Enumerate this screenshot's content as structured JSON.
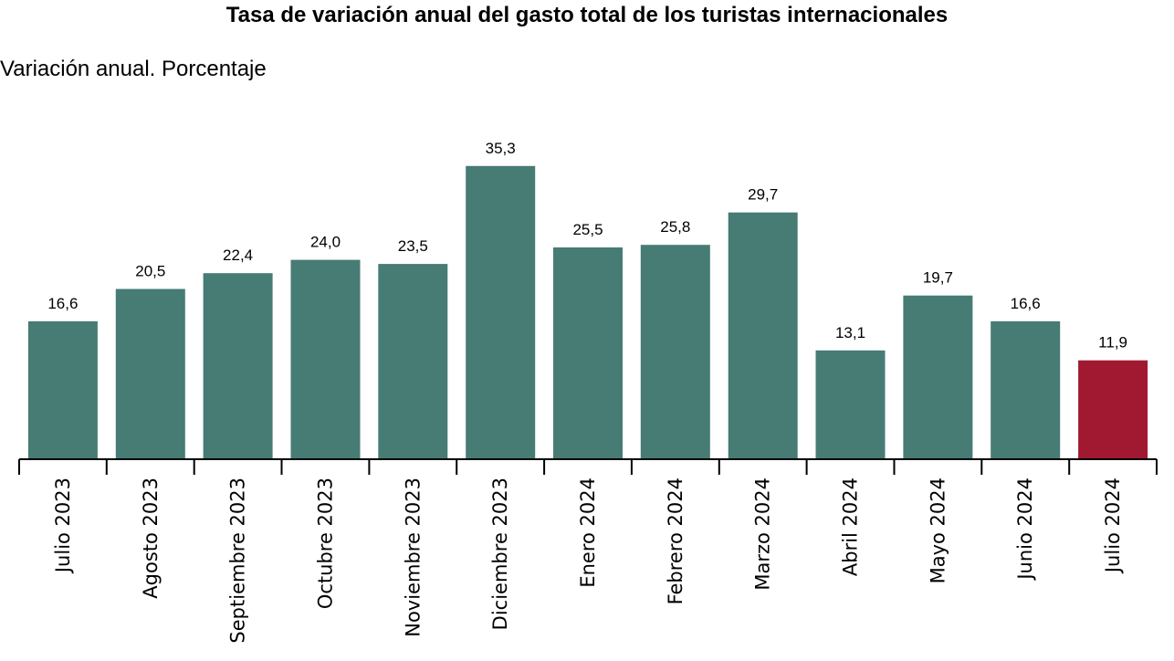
{
  "title": "Tasa de variación anual del gasto total de los turistas internacionales",
  "subtitle": "Variación anual. Porcentaje",
  "colors": {
    "bar": "#467c74",
    "highlight": "#a01930",
    "axis": "#000000"
  },
  "chart_data": {
    "type": "bar",
    "title": "Tasa de variación anual del gasto total de los turistas internacionales",
    "ylabel": "Variación anual. Porcentaje",
    "xlabel": "",
    "ylim": [
      0,
      40
    ],
    "grid": false,
    "categories": [
      "Julio 2023",
      "Agosto 2023",
      "Septiembre 2023",
      "Octubre 2023",
      "Noviembre 2023",
      "Diciembre 2023",
      "Enero 2024",
      "Febrero 2024",
      "Marzo 2024",
      "Abril 2024",
      "Mayo 2024",
      "Junio 2024",
      "Julio 2024"
    ],
    "values": [
      16.6,
      20.5,
      22.4,
      24.0,
      23.5,
      35.3,
      25.5,
      25.8,
      29.7,
      13.1,
      19.7,
      16.6,
      11.9
    ],
    "value_labels": [
      "16,6",
      "20,5",
      "22,4",
      "24,0",
      "23,5",
      "35,3",
      "25,5",
      "25,8",
      "29,7",
      "13,1",
      "19,7",
      "16,6",
      "11,9"
    ],
    "highlight_index": 12
  }
}
